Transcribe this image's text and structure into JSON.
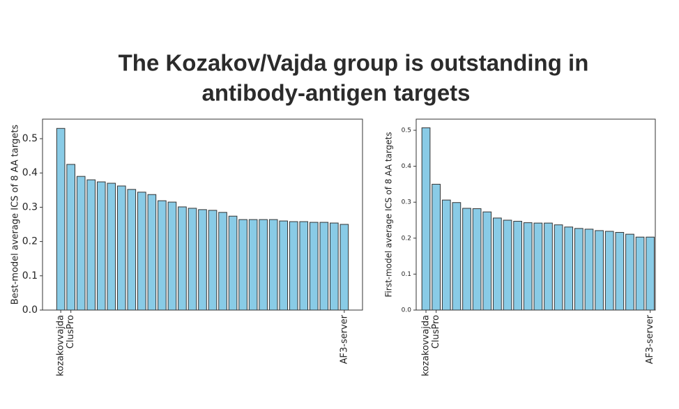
{
  "title": [
    "The Kozakov/Vajda group is outstanding in",
    "antibody-antigen targets"
  ],
  "chart_data": [
    {
      "type": "bar",
      "ylabel": "Best-model average ICS of 8 AA targets",
      "categories": [
        "kozakovvajda",
        "ClusPro",
        null,
        null,
        null,
        null,
        null,
        null,
        null,
        null,
        null,
        null,
        null,
        null,
        null,
        null,
        null,
        null,
        null,
        null,
        null,
        null,
        null,
        null,
        null,
        null,
        null,
        null,
        "AF3-server"
      ],
      "values": [
        0.53,
        0.425,
        0.39,
        0.38,
        0.374,
        0.37,
        0.362,
        0.352,
        0.344,
        0.337,
        0.319,
        0.315,
        0.301,
        0.297,
        0.293,
        0.291,
        0.285,
        0.274,
        0.264,
        0.264,
        0.264,
        0.264,
        0.26,
        0.258,
        0.258,
        0.256,
        0.256,
        0.254,
        0.25
      ],
      "color": "#89cbe6",
      "edgecolor": "#333333",
      "ylim": [
        0,
        0.557
      ],
      "yticks": [
        {
          "value": 0,
          "label": "0.0"
        },
        0.1,
        0.2,
        0.3,
        0.4,
        0.5
      ]
    },
    {
      "type": "bar",
      "ylabel": "First-model average ICS of 8 AA targets",
      "categories": [
        "kozakovvajda",
        "ClusPro",
        null,
        null,
        null,
        null,
        null,
        null,
        null,
        null,
        null,
        null,
        null,
        null,
        null,
        null,
        null,
        null,
        null,
        null,
        null,
        null,
        "AF3-server"
      ],
      "values": [
        0.507,
        0.35,
        0.306,
        0.299,
        0.283,
        0.282,
        0.273,
        0.256,
        0.25,
        0.247,
        0.243,
        0.242,
        0.242,
        0.237,
        0.231,
        0.227,
        0.225,
        0.221,
        0.219,
        0.216,
        0.211,
        0.203,
        0.203
      ],
      "color": "#89cbe6",
      "edgecolor": "#333333",
      "ylim": [
        0,
        0.531
      ],
      "yticks": [
        {
          "value": 0,
          "label": "0.0"
        },
        0.1,
        0.2,
        0.3,
        0.4,
        0.5
      ]
    }
  ]
}
